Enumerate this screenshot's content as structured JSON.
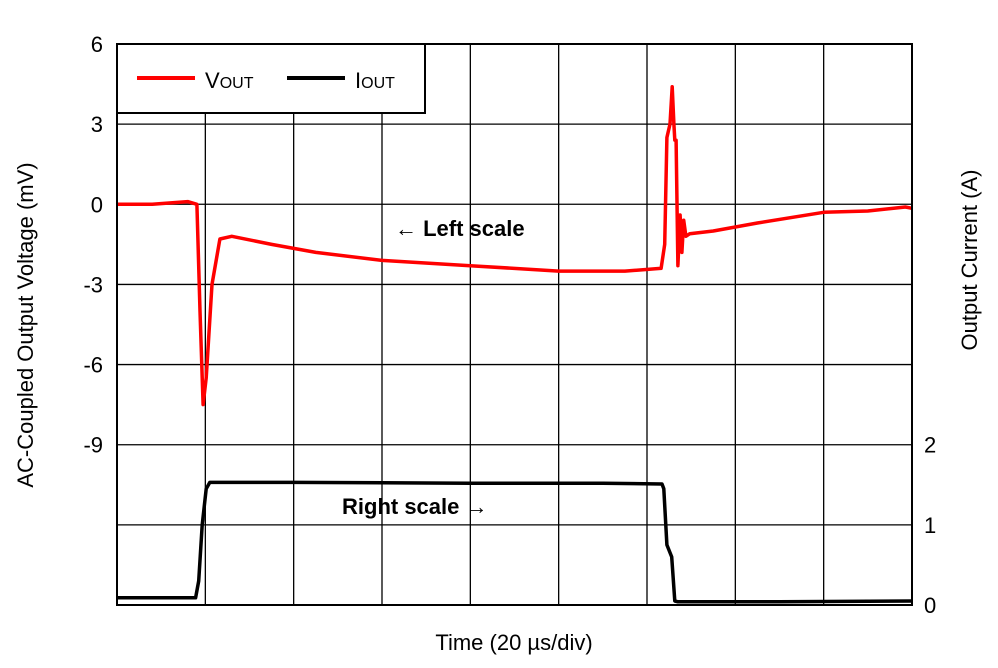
{
  "chart_data": {
    "type": "line",
    "xlabel": "Time (20 µs/div)",
    "ylabel_left": "AC-Coupled Output Voltage (mV)",
    "ylabel_right": "Output Current (A)",
    "xlim": [
      0,
      180
    ],
    "ylim_left": [
      -15,
      6
    ],
    "ylim_right": [
      0,
      7
    ],
    "left_ticks": [
      "6",
      "3",
      "0",
      "-3",
      "-6",
      "-9"
    ],
    "left_tick_values": [
      6,
      3,
      0,
      -3,
      -6,
      -9
    ],
    "right_ticks": [
      "2",
      "1",
      "0"
    ],
    "right_tick_values": [
      2,
      1,
      0
    ],
    "grid": true,
    "x_divisions": 9,
    "y_divisions": 7,
    "legend": {
      "placement": "top-left",
      "entries": [
        {
          "main": "V",
          "sub": "OUT"
        },
        {
          "main": "I",
          "sub": "OUT"
        }
      ]
    },
    "annotations": {
      "left": "← Left scale",
      "right": "Right scale →"
    },
    "series": [
      {
        "name": "VOUT",
        "axis": "left",
        "color": "#ff0000",
        "x": [
          0,
          8,
          16,
          18.1,
          18.8,
          19.5,
          20.2,
          21.5,
          23.3,
          26,
          35,
          45,
          60,
          80,
          100,
          115,
          123,
          123.2,
          124,
          124.5,
          125.2,
          125.7,
          126.1,
          126.3,
          126.6,
          127.0,
          127.5,
          127.9,
          128.3,
          128.8,
          129.7,
          135,
          145,
          160,
          170,
          178.5,
          180
        ],
        "y": [
          0.0,
          0.0,
          0.1,
          0.0,
          -4.0,
          -7.5,
          -6.5,
          -3.0,
          -1.3,
          -1.2,
          -1.5,
          -1.8,
          -2.1,
          -2.3,
          -2.5,
          -2.5,
          -2.4,
          -2.4,
          -1.5,
          2.5,
          3.0,
          4.4,
          3.0,
          2.4,
          2.4,
          -2.3,
          -0.4,
          -1.8,
          -0.6,
          -1.2,
          -1.1,
          -1.0,
          -0.7,
          -0.3,
          -0.25,
          -0.1,
          -0.15
        ]
      },
      {
        "name": "IOUT",
        "axis": "right",
        "color": "#000000",
        "x": [
          0,
          17.8,
          18.5,
          19.3,
          20.2,
          21.0,
          40,
          80,
          110,
          123.4,
          123.8,
          124.5,
          125.6,
          126.3,
          127,
          150,
          180
        ],
        "y": [
          0.09,
          0.09,
          0.3,
          1.0,
          1.45,
          1.53,
          1.53,
          1.52,
          1.52,
          1.51,
          1.45,
          0.75,
          0.6,
          0.05,
          0.04,
          0.04,
          0.05
        ]
      }
    ]
  }
}
